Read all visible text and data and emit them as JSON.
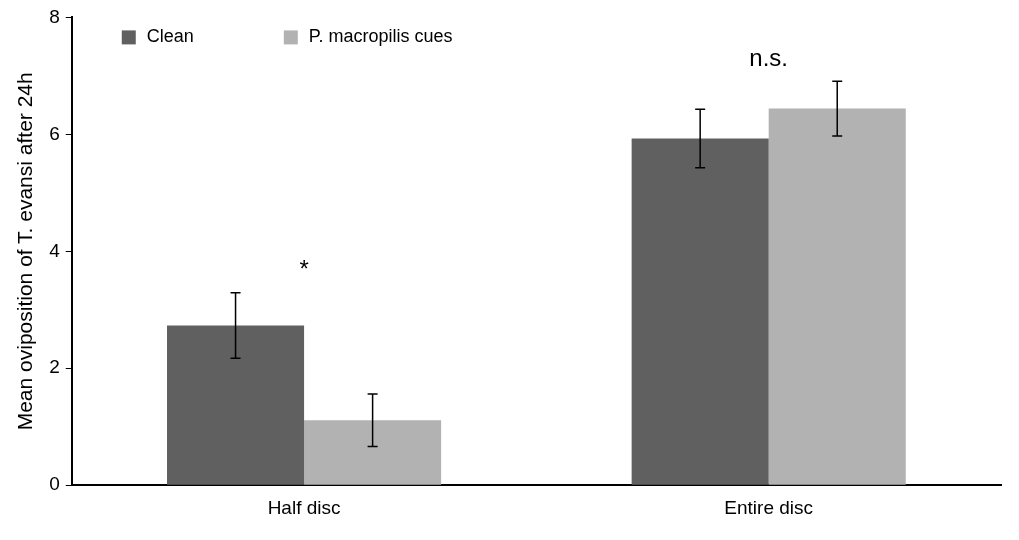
{
  "chart_data": {
    "type": "bar",
    "ylabel": "Mean oviposition of T. evansi after 24h",
    "categories": [
      "Half disc",
      "Entire disc"
    ],
    "series": [
      {
        "name": "Clean",
        "color": "#606060",
        "values": [
          2.73,
          5.93
        ],
        "errors": [
          0.56,
          0.5
        ]
      },
      {
        "name": "P. macropilis cues",
        "color": "#b2b2b2",
        "values": [
          1.11,
          6.44
        ],
        "errors": [
          0.45,
          0.47
        ]
      }
    ],
    "ylim": [
      0,
      8
    ],
    "yticks": [
      0,
      2,
      4,
      6,
      8
    ],
    "grid": false,
    "legend": "top left",
    "annotations": [
      "*",
      "n.s."
    ]
  }
}
